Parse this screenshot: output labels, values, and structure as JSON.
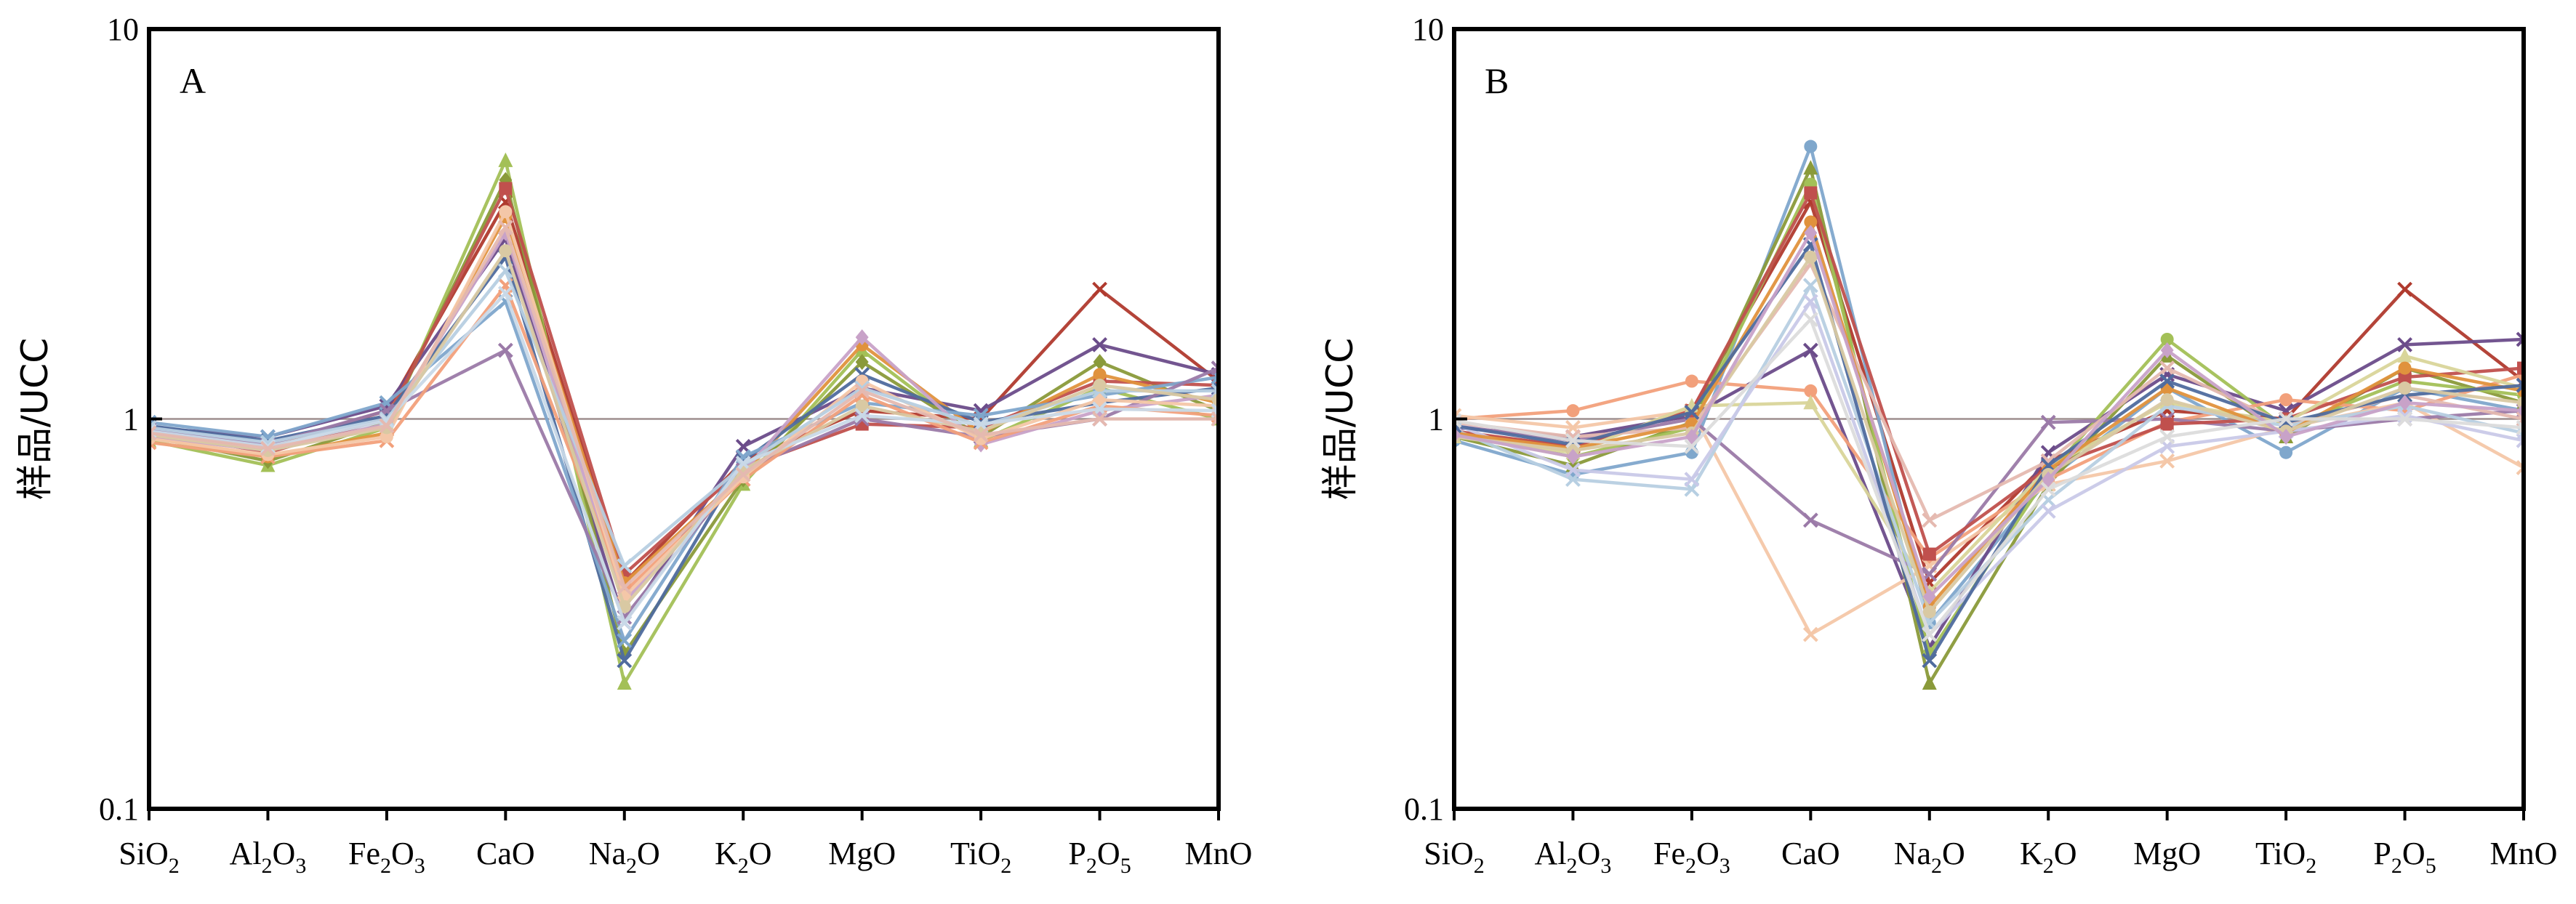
{
  "chart_data": [
    {
      "type": "line",
      "panel_label": "A",
      "ylabel": "样品/UCC",
      "yscale": "log",
      "ylim": [
        0.1,
        10
      ],
      "yticks": [
        "10",
        "1",
        "0.1"
      ],
      "reference_line": 1,
      "categories": [
        "SiO2",
        "Al2O3",
        "Fe2O3",
        "CaO",
        "Na2O",
        "K2O",
        "MgO",
        "TiO2",
        "P2O5",
        "MnO"
      ],
      "series": [
        {
          "color": "#b03a2e",
          "marker": "x",
          "values": [
            0.92,
            0.85,
            1.05,
            3.6,
            0.38,
            0.78,
            1.05,
            1.0,
            2.15,
            1.25
          ]
        },
        {
          "color": "#6b4c8a",
          "marker": "x",
          "values": [
            0.95,
            0.9,
            1.08,
            2.9,
            0.3,
            0.85,
            1.2,
            1.05,
            1.55,
            1.3
          ]
        },
        {
          "color": "#a3c057",
          "marker": "triangle",
          "values": [
            0.88,
            0.76,
            0.95,
            4.6,
            0.21,
            0.68,
            1.5,
            0.88,
            1.2,
            1.0
          ]
        },
        {
          "color": "#8a9a3a",
          "marker": "diamond",
          "values": [
            0.9,
            0.78,
            0.98,
            4.1,
            0.25,
            0.7,
            1.4,
            0.9,
            1.4,
            1.05
          ]
        },
        {
          "color": "#c0504d",
          "marker": "square",
          "values": [
            0.93,
            0.82,
            1.0,
            3.9,
            0.4,
            0.75,
            0.97,
            0.95,
            1.25,
            1.22
          ]
        },
        {
          "color": "#e0923d",
          "marker": "circle",
          "values": [
            0.9,
            0.8,
            0.92,
            3.3,
            0.38,
            0.72,
            1.55,
            0.92,
            1.3,
            1.1
          ]
        },
        {
          "color": "#4f6b9e",
          "marker": "x",
          "values": [
            0.96,
            0.88,
            1.02,
            2.6,
            0.24,
            0.78,
            1.3,
            0.98,
            1.1,
            1.2
          ]
        },
        {
          "color": "#7fa7cc",
          "marker": "x",
          "values": [
            0.98,
            0.9,
            1.1,
            2.0,
            0.27,
            0.8,
            1.1,
            1.02,
            1.15,
            1.28
          ]
        },
        {
          "color": "#9b7aa8",
          "marker": "x",
          "values": [
            0.94,
            0.86,
            1.05,
            1.5,
            0.31,
            0.74,
            1.0,
            0.9,
            1.0,
            1.35
          ]
        },
        {
          "color": "#c8a2c8",
          "marker": "diamond",
          "values": [
            0.9,
            0.83,
            0.97,
            3.0,
            0.34,
            0.73,
            1.62,
            0.86,
            1.05,
            1.15
          ]
        },
        {
          "color": "#f2a07b",
          "marker": "x",
          "values": [
            0.87,
            0.8,
            0.88,
            2.2,
            0.36,
            0.7,
            1.15,
            0.87,
            1.08,
            1.02
          ]
        },
        {
          "color": "#f4c7a8",
          "marker": "circle",
          "values": [
            0.89,
            0.81,
            0.9,
            3.4,
            0.35,
            0.71,
            1.25,
            0.89,
            1.12,
            1.08
          ]
        },
        {
          "color": "#b7cfe2",
          "marker": "x",
          "values": [
            0.95,
            0.87,
            1.0,
            2.4,
            0.42,
            0.76,
            1.2,
            0.96,
            1.18,
            1.18
          ]
        },
        {
          "color": "#d9c9a3",
          "marker": "circle",
          "values": [
            0.91,
            0.83,
            0.95,
            2.7,
            0.33,
            0.74,
            1.08,
            0.93,
            1.22,
            1.12
          ]
        },
        {
          "color": "#c9d9e8",
          "marker": "x",
          "values": [
            0.93,
            0.85,
            0.99,
            2.1,
            0.3,
            0.77,
            1.02,
            0.97,
            1.06,
            1.05
          ]
        },
        {
          "color": "#e5b9b0",
          "marker": "x",
          "values": [
            0.92,
            0.84,
            0.96,
            3.1,
            0.37,
            0.72,
            1.18,
            0.91,
            1.0,
            1.0
          ]
        }
      ]
    },
    {
      "type": "line",
      "panel_label": "B",
      "ylabel": "样品/UCC",
      "yscale": "log",
      "ylim": [
        0.1,
        10
      ],
      "yticks": [
        "10",
        "1",
        "0.1"
      ],
      "reference_line": 1,
      "categories": [
        "SiO2",
        "Al2O3",
        "Fe2O3",
        "CaO",
        "Na2O",
        "K2O",
        "MgO",
        "TiO2",
        "P2O5",
        "MnO"
      ],
      "series": [
        {
          "color": "#b03a2e",
          "marker": "x",
          "values": [
            0.92,
            0.85,
            1.05,
            3.6,
            0.38,
            0.78,
            1.05,
            1.0,
            2.15,
            1.25
          ]
        },
        {
          "color": "#7fa7cc",
          "marker": "circle",
          "values": [
            0.88,
            0.72,
            0.82,
            5.0,
            0.3,
            0.7,
            1.2,
            0.82,
            1.2,
            1.05
          ]
        },
        {
          "color": "#6b4c8a",
          "marker": "x",
          "values": [
            0.95,
            0.9,
            1.02,
            1.5,
            0.26,
            0.82,
            1.3,
            1.05,
            1.55,
            1.6
          ]
        },
        {
          "color": "#8a9a3a",
          "marker": "triangle",
          "values": [
            0.9,
            0.76,
            0.98,
            4.4,
            0.21,
            0.68,
            1.45,
            0.9,
            1.35,
            1.1
          ]
        },
        {
          "color": "#a3c057",
          "marker": "circle",
          "values": [
            0.92,
            0.8,
            0.95,
            4.0,
            0.25,
            0.72,
            1.6,
            0.95,
            1.25,
            1.15
          ]
        },
        {
          "color": "#f2a07b",
          "marker": "circle",
          "values": [
            1.0,
            1.05,
            1.25,
            1.18,
            0.44,
            0.7,
            0.98,
            1.12,
            1.05,
            1.3
          ]
        },
        {
          "color": "#f4c7a8",
          "marker": "x",
          "values": [
            1.02,
            0.95,
            1.05,
            0.28,
            0.42,
            0.68,
            0.78,
            0.95,
            1.1,
            0.75
          ]
        },
        {
          "color": "#9b7aa8",
          "marker": "x",
          "values": [
            0.96,
            0.88,
            1.0,
            0.55,
            0.4,
            0.98,
            1.0,
            0.93,
            1.0,
            1.05
          ]
        },
        {
          "color": "#c0504d",
          "marker": "square",
          "values": [
            0.93,
            0.85,
            1.05,
            3.8,
            0.45,
            0.75,
            0.97,
            1.0,
            1.28,
            1.35
          ]
        },
        {
          "color": "#d9d59a",
          "marker": "triangle",
          "values": [
            0.9,
            0.82,
            1.08,
            1.1,
            0.36,
            0.75,
            1.1,
            0.98,
            1.45,
            1.2
          ]
        },
        {
          "color": "#e5b9b0",
          "marker": "x",
          "values": [
            0.98,
            0.9,
            0.95,
            2.5,
            0.55,
            0.78,
            1.35,
            0.97,
            1.15,
            1.0
          ]
        },
        {
          "color": "#b7cfe2",
          "marker": "x",
          "values": [
            0.94,
            0.7,
            0.66,
            2.2,
            0.3,
            0.62,
            1.08,
            0.96,
            1.08,
            0.92
          ]
        },
        {
          "color": "#c9c9e8",
          "marker": "x",
          "values": [
            0.97,
            0.74,
            0.7,
            2.0,
            0.28,
            0.58,
            0.85,
            0.93,
            1.02,
            0.88
          ]
        },
        {
          "color": "#e0923d",
          "marker": "circle",
          "values": [
            0.92,
            0.84,
            0.97,
            3.2,
            0.33,
            0.74,
            1.2,
            0.92,
            1.35,
            1.18
          ]
        },
        {
          "color": "#4f6b9e",
          "marker": "x",
          "values": [
            0.96,
            0.86,
            1.04,
            2.8,
            0.24,
            0.76,
            1.25,
            0.98,
            1.15,
            1.22
          ]
        },
        {
          "color": "#d9c9a3",
          "marker": "circle",
          "values": [
            0.9,
            0.83,
            0.92,
            2.6,
            0.32,
            0.72,
            1.12,
            0.93,
            1.2,
            1.1
          ]
        },
        {
          "color": "#c8a2c8",
          "marker": "diamond",
          "values": [
            0.91,
            0.8,
            0.9,
            3.0,
            0.35,
            0.7,
            1.5,
            0.9,
            1.1,
            1.05
          ]
        },
        {
          "color": "#dcdcdc",
          "marker": "x",
          "values": [
            0.99,
            0.88,
            0.85,
            1.8,
            0.28,
            0.66,
            0.9,
            1.0,
            1.0,
            0.95
          ]
        }
      ]
    }
  ]
}
